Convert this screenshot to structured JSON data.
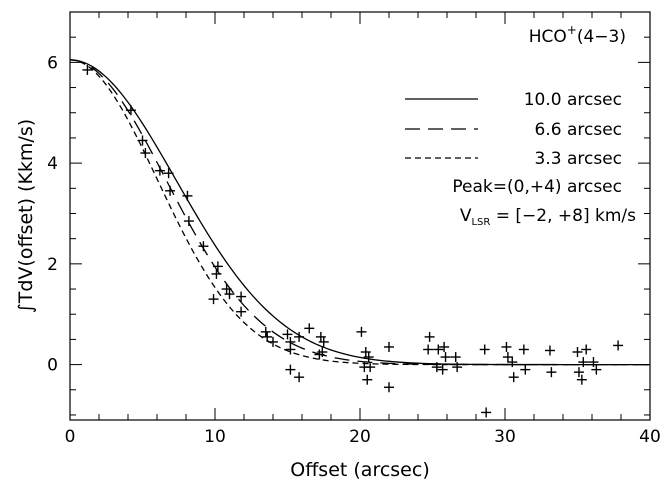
{
  "chart_data": {
    "type": "scatter",
    "title": "HCO⁺(4−3)",
    "title_main": "HCO",
    "title_sup": "+",
    "title_tail": "(4−3)",
    "xlabel": "Offset (arcsec)",
    "ylabel": "∫TdV(offset) (Kkm/s)",
    "xlim": [
      0,
      40
    ],
    "ylim": [
      -1.1,
      7.0
    ],
    "xticks": [
      0,
      10,
      20,
      30,
      40
    ],
    "yticks": [
      0,
      2,
      4,
      6
    ],
    "x_minor_step": 2,
    "y_minor_step": 0.5,
    "legend_position": "top-right",
    "legend": [
      {
        "dash": "solid",
        "label": "10.0 arcsec"
      },
      {
        "dash": "long-dash",
        "label": "6.6 arcsec"
      },
      {
        "dash": "short-dash",
        "label": "3.3 arcsec"
      }
    ],
    "notes": [
      {
        "text": "Peak=(0,+4) arcsec"
      },
      {
        "prefix": "V",
        "sub": "LSR",
        "suffix": " = [−2, +8] km/s"
      }
    ],
    "model_curves": [
      {
        "beam": 10.0,
        "dash": "solid",
        "peak": 6.05,
        "halfwidth": 8.6
      },
      {
        "beam": 6.6,
        "dash": "long-dash",
        "peak": 6.05,
        "halfwidth": 7.8
      },
      {
        "beam": 3.3,
        "dash": "short-dash",
        "peak": 6.05,
        "halfwidth": 7.1
      }
    ],
    "points": [
      [
        1.2,
        5.85
      ],
      [
        4.2,
        5.05
      ],
      [
        5.0,
        4.45
      ],
      [
        5.2,
        4.2
      ],
      [
        6.2,
        3.85
      ],
      [
        6.8,
        3.8
      ],
      [
        6.9,
        3.45
      ],
      [
        8.1,
        3.35
      ],
      [
        8.2,
        2.85
      ],
      [
        9.2,
        2.35
      ],
      [
        10.2,
        1.95
      ],
      [
        10.1,
        1.8
      ],
      [
        9.9,
        1.3
      ],
      [
        10.8,
        1.5
      ],
      [
        11.0,
        1.4
      ],
      [
        11.8,
        1.35
      ],
      [
        11.8,
        1.05
      ],
      [
        13.5,
        0.65
      ],
      [
        13.6,
        0.55
      ],
      [
        14.0,
        0.45
      ],
      [
        15.0,
        0.6
      ],
      [
        15.2,
        0.45
      ],
      [
        15.2,
        0.3
      ],
      [
        15.8,
        0.55
      ],
      [
        16.5,
        0.72
      ],
      [
        17.3,
        0.55
      ],
      [
        17.5,
        0.45
      ],
      [
        17.2,
        0.2
      ],
      [
        17.4,
        0.25
      ],
      [
        15.2,
        -0.1
      ],
      [
        15.8,
        -0.25
      ],
      [
        20.1,
        0.65
      ],
      [
        20.4,
        0.25
      ],
      [
        20.6,
        0.15
      ],
      [
        20.3,
        -0.05
      ],
      [
        20.7,
        -0.05
      ],
      [
        20.5,
        -0.3
      ],
      [
        22.0,
        0.35
      ],
      [
        22.0,
        -0.45
      ],
      [
        24.8,
        0.55
      ],
      [
        24.7,
        0.3
      ],
      [
        25.4,
        0.3
      ],
      [
        25.8,
        0.35
      ],
      [
        25.9,
        0.15
      ],
      [
        25.3,
        -0.05
      ],
      [
        25.7,
        -0.1
      ],
      [
        26.6,
        0.15
      ],
      [
        26.7,
        -0.05
      ],
      [
        28.6,
        0.3
      ],
      [
        28.7,
        -0.95
      ],
      [
        30.1,
        0.35
      ],
      [
        30.2,
        0.15
      ],
      [
        30.5,
        0.05
      ],
      [
        30.6,
        -0.25
      ],
      [
        31.3,
        0.3
      ],
      [
        31.4,
        -0.1
      ],
      [
        33.1,
        0.28
      ],
      [
        33.2,
        -0.15
      ],
      [
        35.0,
        0.25
      ],
      [
        35.1,
        -0.15
      ],
      [
        35.3,
        -0.3
      ],
      [
        35.6,
        0.3
      ],
      [
        35.4,
        0.05
      ],
      [
        36.1,
        0.05
      ],
      [
        36.3,
        -0.1
      ],
      [
        37.8,
        0.38
      ]
    ]
  }
}
